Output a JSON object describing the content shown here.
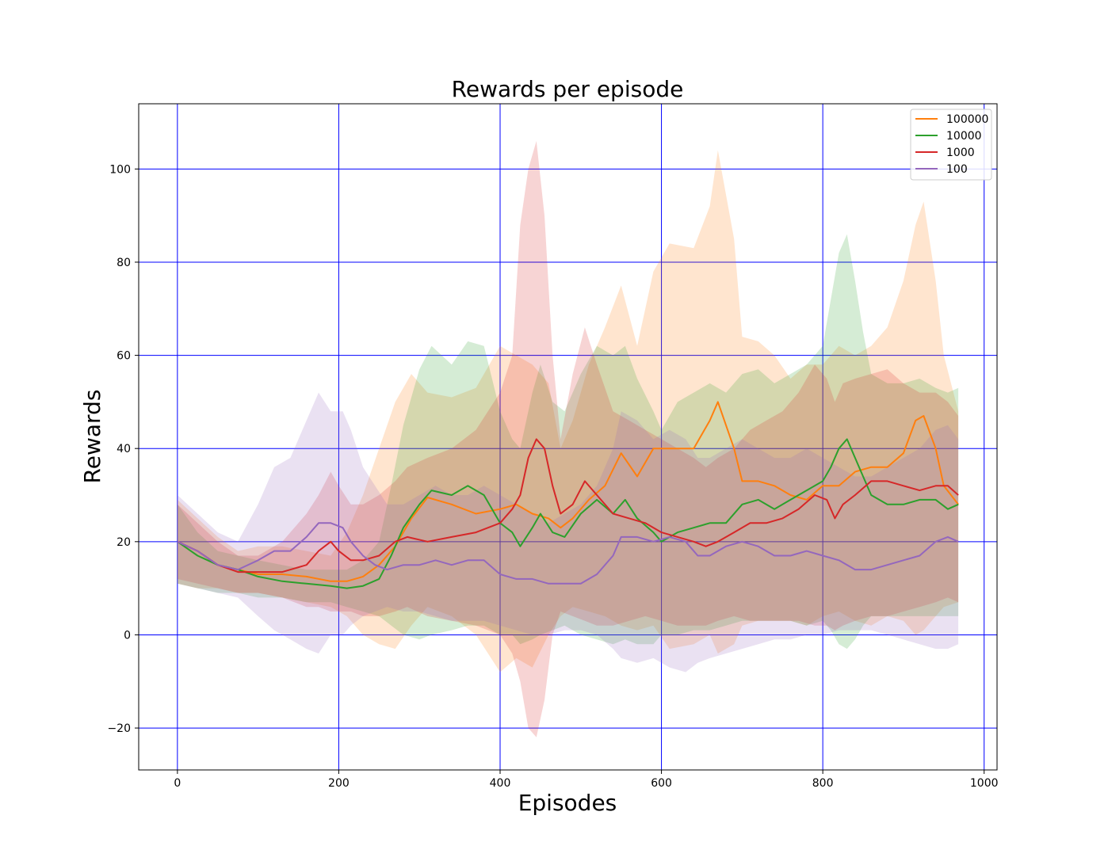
{
  "chart_data": {
    "type": "line",
    "title": "Rewards per episode",
    "xlabel": "Episodes",
    "ylabel": "Rewards",
    "xlim": [
      -48,
      1016
    ],
    "ylim": [
      -29,
      114
    ],
    "xticks": [
      0,
      200,
      400,
      600,
      800,
      1000
    ],
    "yticks": [
      -20,
      0,
      20,
      40,
      60,
      80,
      100
    ],
    "xtick_labels": [
      "0",
      "200",
      "400",
      "600",
      "800",
      "1000"
    ],
    "ytick_labels": [
      "−20",
      "0",
      "20",
      "40",
      "60",
      "80",
      "100"
    ],
    "grid": true,
    "grid_color": "#0000ff",
    "legend_position": "top-right",
    "series": [
      {
        "name": "100000",
        "color": "#ff7f0e",
        "x": [
          0,
          25,
          50,
          75,
          100,
          130,
          160,
          190,
          210,
          230,
          250,
          270,
          290,
          310,
          340,
          370,
          400,
          420,
          440,
          460,
          475,
          490,
          510,
          530,
          550,
          570,
          590,
          610,
          640,
          660,
          670,
          690,
          700,
          720,
          740,
          760,
          780,
          800,
          820,
          840,
          860,
          880,
          900,
          915,
          925,
          940,
          950,
          968
        ],
        "mean": [
          20,
          18,
          15,
          14,
          13,
          13,
          12.5,
          11.5,
          11.5,
          12.5,
          15,
          19,
          25,
          29.5,
          28,
          26,
          27,
          28,
          26,
          25,
          23,
          25,
          29,
          32,
          39,
          34,
          40,
          40,
          40,
          46,
          50,
          40,
          33,
          33,
          32,
          30,
          29,
          32,
          32,
          35,
          36,
          36,
          39,
          46,
          47,
          40,
          32,
          28
        ],
        "upper": [
          29,
          25,
          21,
          18,
          19,
          19,
          18,
          17,
          22,
          30,
          40,
          50,
          56,
          52,
          51,
          53,
          62,
          60,
          58,
          54,
          40,
          46,
          58,
          66,
          75,
          62,
          78,
          84,
          83,
          92,
          104,
          85,
          64,
          63,
          60,
          55,
          58,
          58,
          62,
          60,
          62,
          66,
          76,
          88,
          93,
          76,
          60,
          48
        ],
        "lower": [
          11,
          10,
          10,
          9,
          9,
          8,
          7,
          6,
          4,
          0,
          -2,
          -3,
          2,
          6,
          4,
          0,
          -8,
          -5,
          -7,
          0,
          4,
          6,
          5,
          4,
          2,
          1,
          2,
          -3,
          -2,
          0,
          -4,
          -2,
          2,
          3,
          3,
          3,
          2,
          4,
          5,
          3,
          2,
          4,
          3,
          0,
          1,
          4,
          6,
          7
        ]
      },
      {
        "name": "10000",
        "color": "#2ca02c",
        "x": [
          0,
          25,
          50,
          75,
          100,
          130,
          160,
          190,
          210,
          230,
          250,
          265,
          280,
          300,
          315,
          340,
          360,
          380,
          400,
          415,
          425,
          440,
          450,
          465,
          480,
          500,
          520,
          540,
          555,
          570,
          590,
          600,
          620,
          640,
          660,
          680,
          700,
          720,
          740,
          760,
          780,
          800,
          810,
          820,
          830,
          840,
          850,
          860,
          880,
          900,
          920,
          940,
          955,
          968
        ],
        "mean": [
          20,
          17,
          15,
          14,
          12.5,
          11.5,
          11,
          10.5,
          10,
          10.5,
          12,
          17,
          23,
          28,
          31,
          30,
          32,
          30,
          24,
          22,
          19,
          23,
          26,
          22,
          21,
          26,
          29,
          26,
          29,
          25,
          22,
          20,
          22,
          23,
          24,
          24,
          28,
          29,
          27,
          29,
          31,
          33,
          36,
          40,
          42,
          38,
          34,
          30,
          28,
          28,
          29,
          29,
          27,
          28
        ],
        "upper": [
          28,
          22,
          18,
          17,
          16,
          15,
          14,
          14,
          14,
          16,
          20,
          32,
          45,
          57,
          62,
          58,
          63,
          62,
          48,
          42,
          40,
          52,
          58,
          50,
          48,
          56,
          62,
          60,
          62,
          55,
          48,
          44,
          50,
          52,
          54,
          52,
          56,
          57,
          54,
          56,
          58,
          62,
          72,
          82,
          86,
          76,
          65,
          56,
          54,
          54,
          55,
          53,
          52,
          53
        ],
        "lower": [
          11,
          10,
          9,
          9,
          8,
          8,
          7,
          7,
          6,
          5,
          4,
          2,
          0,
          -1,
          0,
          1,
          2,
          2,
          0,
          0,
          -2,
          -1,
          0,
          1,
          2,
          0,
          -1,
          -2,
          -1,
          -2,
          -2,
          0,
          0,
          1,
          1,
          2,
          3,
          3,
          3,
          3,
          2,
          3,
          1,
          -2,
          -3,
          -1,
          2,
          4,
          4,
          4,
          4,
          4,
          4,
          4
        ]
      },
      {
        "name": "1000",
        "color": "#d62728",
        "x": [
          0,
          25,
          50,
          75,
          100,
          130,
          160,
          175,
          190,
          200,
          215,
          230,
          250,
          270,
          285,
          310,
          340,
          370,
          400,
          415,
          425,
          435,
          445,
          455,
          465,
          475,
          490,
          505,
          520,
          540,
          560,
          580,
          600,
          620,
          640,
          655,
          670,
          690,
          710,
          730,
          750,
          770,
          790,
          805,
          815,
          825,
          840,
          860,
          880,
          900,
          920,
          940,
          955,
          968
        ],
        "mean": [
          20,
          18,
          15,
          13.5,
          13.5,
          13.5,
          15,
          18,
          20,
          18,
          16,
          16,
          17,
          20,
          21,
          20,
          21,
          22,
          24,
          27,
          30,
          38,
          42,
          40,
          32,
          26,
          28,
          33,
          30,
          26,
          25,
          24,
          22,
          21,
          20,
          19,
          20,
          22,
          24,
          24,
          25,
          27,
          30,
          29,
          25,
          28,
          30,
          33,
          33,
          32,
          31,
          32,
          32,
          30
        ],
        "upper": [
          28,
          24,
          20,
          17,
          17,
          20,
          26,
          30,
          35,
          32,
          28,
          28,
          30,
          33,
          36,
          38,
          40,
          44,
          52,
          60,
          88,
          100,
          106,
          90,
          60,
          42,
          56,
          66,
          58,
          48,
          46,
          44,
          42,
          40,
          38,
          36,
          38,
          40,
          44,
          46,
          48,
          52,
          58,
          55,
          50,
          54,
          55,
          56,
          57,
          54,
          52,
          52,
          50,
          47
        ],
        "lower": [
          12,
          11,
          10,
          9,
          9,
          8,
          6,
          6,
          5,
          5,
          5,
          4,
          4,
          5,
          6,
          4,
          3,
          2,
          0,
          -4,
          -10,
          -20,
          -22,
          -14,
          0,
          5,
          4,
          3,
          2,
          2,
          3,
          4,
          3,
          2,
          2,
          2,
          3,
          4,
          3,
          3,
          3,
          3,
          2,
          2,
          1,
          2,
          3,
          4,
          4,
          5,
          6,
          7,
          8,
          7
        ]
      },
      {
        "name": "100",
        "color": "#9467bd",
        "x": [
          0,
          25,
          50,
          75,
          100,
          120,
          140,
          160,
          175,
          190,
          205,
          215,
          230,
          245,
          260,
          280,
          300,
          320,
          340,
          360,
          380,
          400,
          420,
          440,
          460,
          480,
          500,
          520,
          540,
          550,
          570,
          590,
          610,
          630,
          645,
          660,
          680,
          700,
          720,
          740,
          760,
          780,
          800,
          820,
          840,
          860,
          880,
          900,
          920,
          940,
          955,
          968
        ],
        "mean": [
          20,
          18,
          15,
          14,
          16,
          18,
          18,
          21,
          24,
          24,
          23,
          20,
          17,
          15,
          14,
          15,
          15,
          16,
          15,
          16,
          16,
          13,
          12,
          12,
          11,
          11,
          11,
          13,
          17,
          21,
          21,
          20,
          21,
          20,
          17,
          17,
          19,
          20,
          19,
          17,
          17,
          18,
          17,
          16,
          14,
          14,
          15,
          16,
          17,
          20,
          21,
          20
        ],
        "upper": [
          30,
          26,
          22,
          20,
          28,
          36,
          38,
          46,
          52,
          48,
          48,
          44,
          36,
          32,
          28,
          28,
          30,
          32,
          30,
          30,
          32,
          30,
          28,
          26,
          24,
          26,
          28,
          32,
          40,
          48,
          46,
          42,
          44,
          42,
          38,
          38,
          40,
          42,
          40,
          38,
          38,
          40,
          38,
          36,
          34,
          34,
          36,
          38,
          40,
          44,
          45,
          42
        ],
        "lower": [
          11,
          10,
          9,
          8,
          4,
          1,
          -1,
          -3,
          -4,
          0,
          0,
          2,
          4,
          5,
          6,
          5,
          5,
          4,
          3,
          3,
          3,
          2,
          1,
          0,
          0,
          1,
          1,
          0,
          -3,
          -5,
          -6,
          -5,
          -7,
          -8,
          -6,
          -5,
          -4,
          -3,
          -2,
          -1,
          -1,
          0,
          0,
          1,
          1,
          1,
          0,
          -1,
          -2,
          -3,
          -3,
          -2
        ]
      }
    ]
  }
}
